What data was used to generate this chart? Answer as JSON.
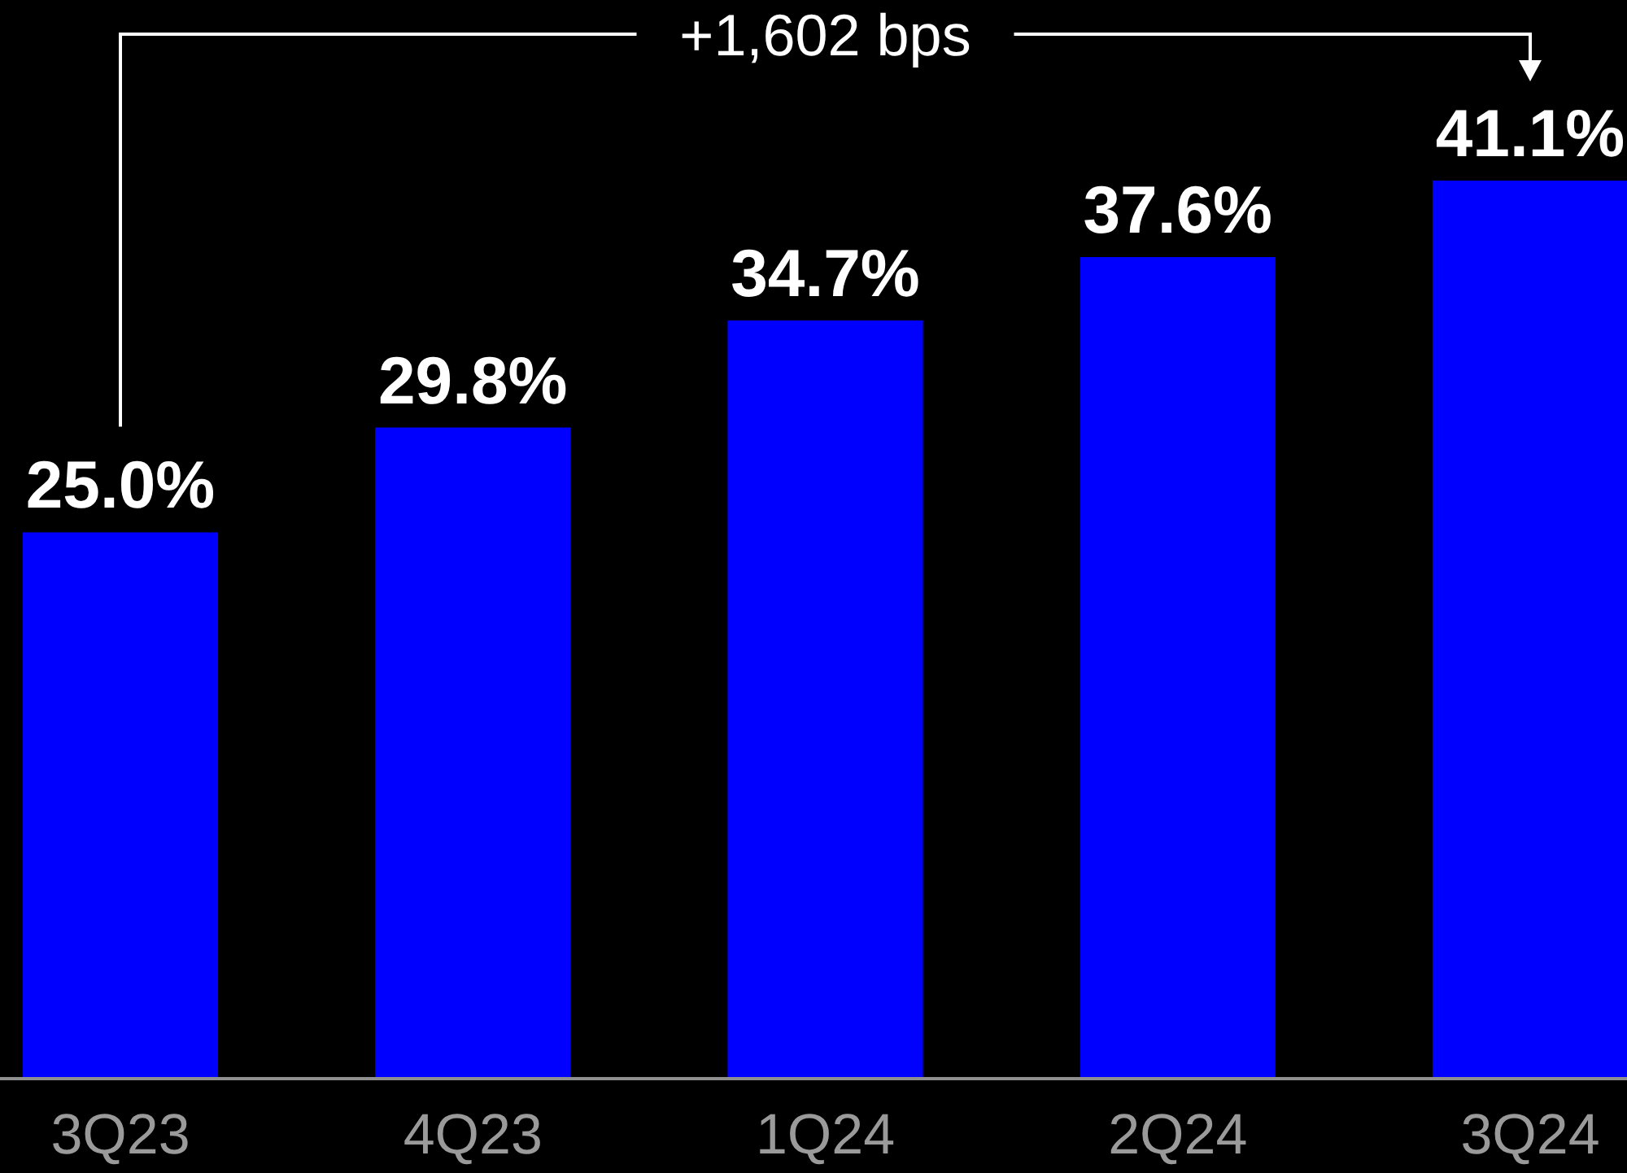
{
  "chart_data": {
    "type": "bar",
    "categories": [
      "3Q23",
      "4Q23",
      "1Q24",
      "2Q24",
      "3Q24"
    ],
    "values": [
      25.0,
      29.8,
      34.7,
      37.6,
      41.1
    ],
    "value_labels": [
      "25.0%",
      "29.8%",
      "34.7%",
      "37.6%",
      "41.1%"
    ],
    "color": "#0000ff",
    "annotations": [
      "+1,602 bps"
    ]
  }
}
